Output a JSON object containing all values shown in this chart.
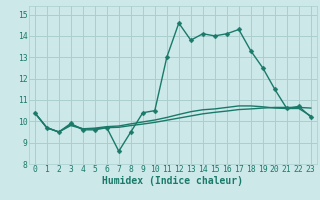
{
  "xlabel": "Humidex (Indice chaleur)",
  "bg_color": "#cce8e8",
  "grid_color": "#aacece",
  "line_color": "#1a7a6a",
  "xlim": [
    -0.5,
    23.5
  ],
  "ylim": [
    8.0,
    15.4
  ],
  "yticks": [
    8,
    9,
    10,
    11,
    12,
    13,
    14,
    15
  ],
  "xticks": [
    0,
    1,
    2,
    3,
    4,
    5,
    6,
    7,
    8,
    9,
    10,
    11,
    12,
    13,
    14,
    15,
    16,
    17,
    18,
    19,
    20,
    21,
    22,
    23
  ],
  "series1_x": [
    0,
    1,
    2,
    3,
    4,
    5,
    6,
    7,
    8,
    9,
    10,
    11,
    12,
    13,
    14,
    15,
    16,
    17,
    18,
    19,
    20,
    21,
    22,
    23
  ],
  "series1_y": [
    10.4,
    9.7,
    9.5,
    9.9,
    9.6,
    9.6,
    9.7,
    8.6,
    9.5,
    10.4,
    10.5,
    13.0,
    14.6,
    13.8,
    14.1,
    14.0,
    14.1,
    14.3,
    13.3,
    12.5,
    11.5,
    10.6,
    10.7,
    10.2
  ],
  "series2_x": [
    0,
    1,
    2,
    3,
    4,
    5,
    6,
    7,
    8,
    9,
    10,
    11,
    12,
    13,
    14,
    15,
    16,
    17,
    18,
    19,
    20,
    21,
    22,
    23
  ],
  "series2_y": [
    10.4,
    9.7,
    9.5,
    9.85,
    9.65,
    9.65,
    9.7,
    9.72,
    9.8,
    9.87,
    9.95,
    10.05,
    10.15,
    10.25,
    10.35,
    10.42,
    10.48,
    10.55,
    10.58,
    10.62,
    10.65,
    10.65,
    10.65,
    10.62
  ],
  "series3_x": [
    0,
    1,
    2,
    3,
    4,
    5,
    6,
    7,
    8,
    9,
    10,
    11,
    12,
    13,
    14,
    15,
    16,
    17,
    18,
    19,
    20,
    21,
    22,
    23
  ],
  "series3_y": [
    10.4,
    9.7,
    9.5,
    9.8,
    9.65,
    9.68,
    9.75,
    9.78,
    9.88,
    9.97,
    10.06,
    10.18,
    10.32,
    10.45,
    10.54,
    10.58,
    10.65,
    10.72,
    10.72,
    10.68,
    10.62,
    10.6,
    10.6,
    10.25
  ],
  "marker_size": 2.5,
  "line_width": 1.0,
  "tick_fontsize": 5.8,
  "xlabel_fontsize": 7.0
}
